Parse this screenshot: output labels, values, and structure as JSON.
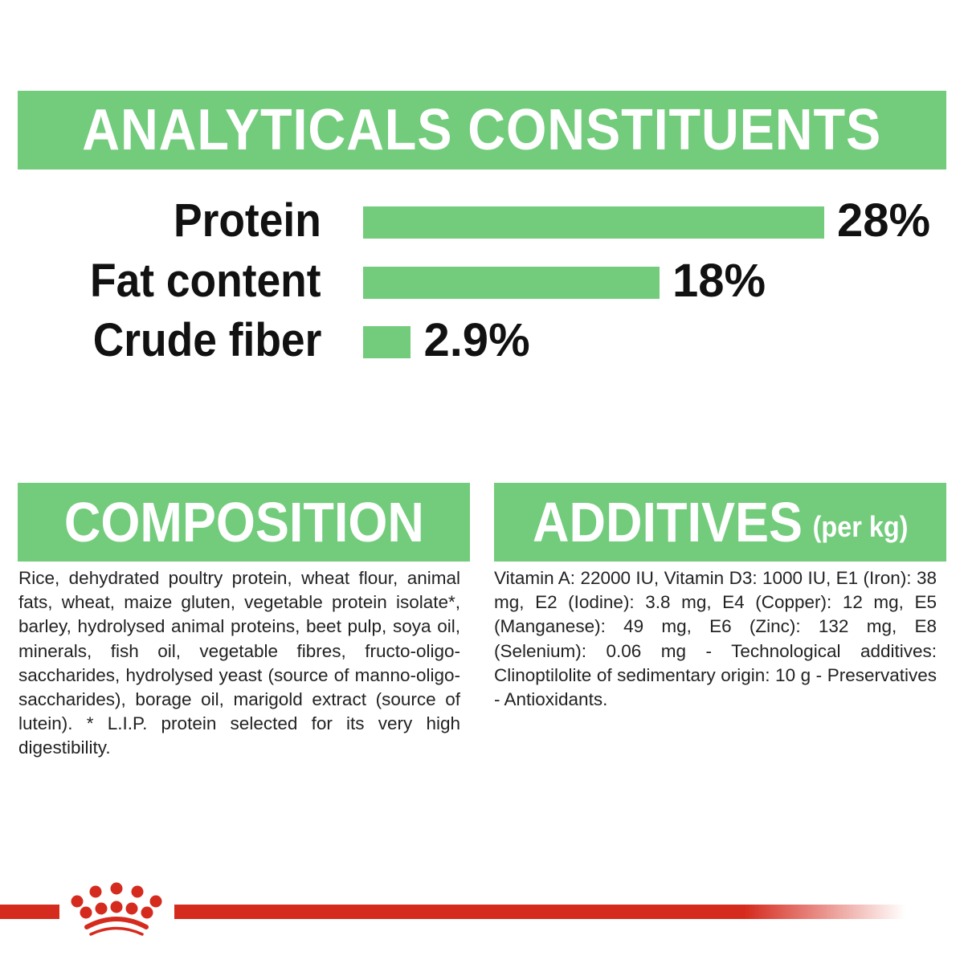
{
  "analytical": {
    "title": "ANALYTICALS CONSTITUENTS"
  },
  "chart_data": {
    "type": "bar",
    "orientation": "horizontal",
    "categories": [
      "Protein",
      "Fat content",
      "Crude fiber"
    ],
    "values": [
      28,
      18,
      2.9
    ],
    "labels": [
      "28%",
      "18%",
      "2.9%"
    ],
    "unit": "%",
    "title": "ANALYTICALS CONSTITUENTS",
    "grid": false,
    "bar_color": "#72cc7c"
  },
  "composition": {
    "title": "COMPOSITION",
    "text": "Rice, dehydrated poultry protein, wheat flour, animal fats, wheat, maize gluten, vegetable protein isolate*, barley, hydrolysed animal proteins, beet pulp, soya oil, minerals, fish oil, vegetable fibres, fructo-oligo-saccharides, hydrolysed yeast (source of manno-oligo-saccharides), borage oil, marigold extract (source of lutein). * L.I.P. protein selected for its very high digestibility."
  },
  "additives": {
    "title": "ADDITIVES",
    "subtitle": "(per kg)",
    "text": "Vitamin A: 22000 IU, Vitamin D3: 1000 IU, E1 (Iron): 38 mg, E2 (Iodine): 3.8 mg, E4 (Copper): 12 mg, E5 (Manganese): 49 mg, E6 (Zinc): 132 mg, E8 (Selenium): 0.06 mg - Technological additives: Clinoptilolite of sedimentary origin: 10 g - Preservatives - Antioxidants."
  },
  "footer": {
    "logo_icon": "royal-canin-crown-icon",
    "brand_color": "#d52b1e"
  },
  "colors": {
    "accent": "#72cc7c",
    "text": "#111111"
  }
}
